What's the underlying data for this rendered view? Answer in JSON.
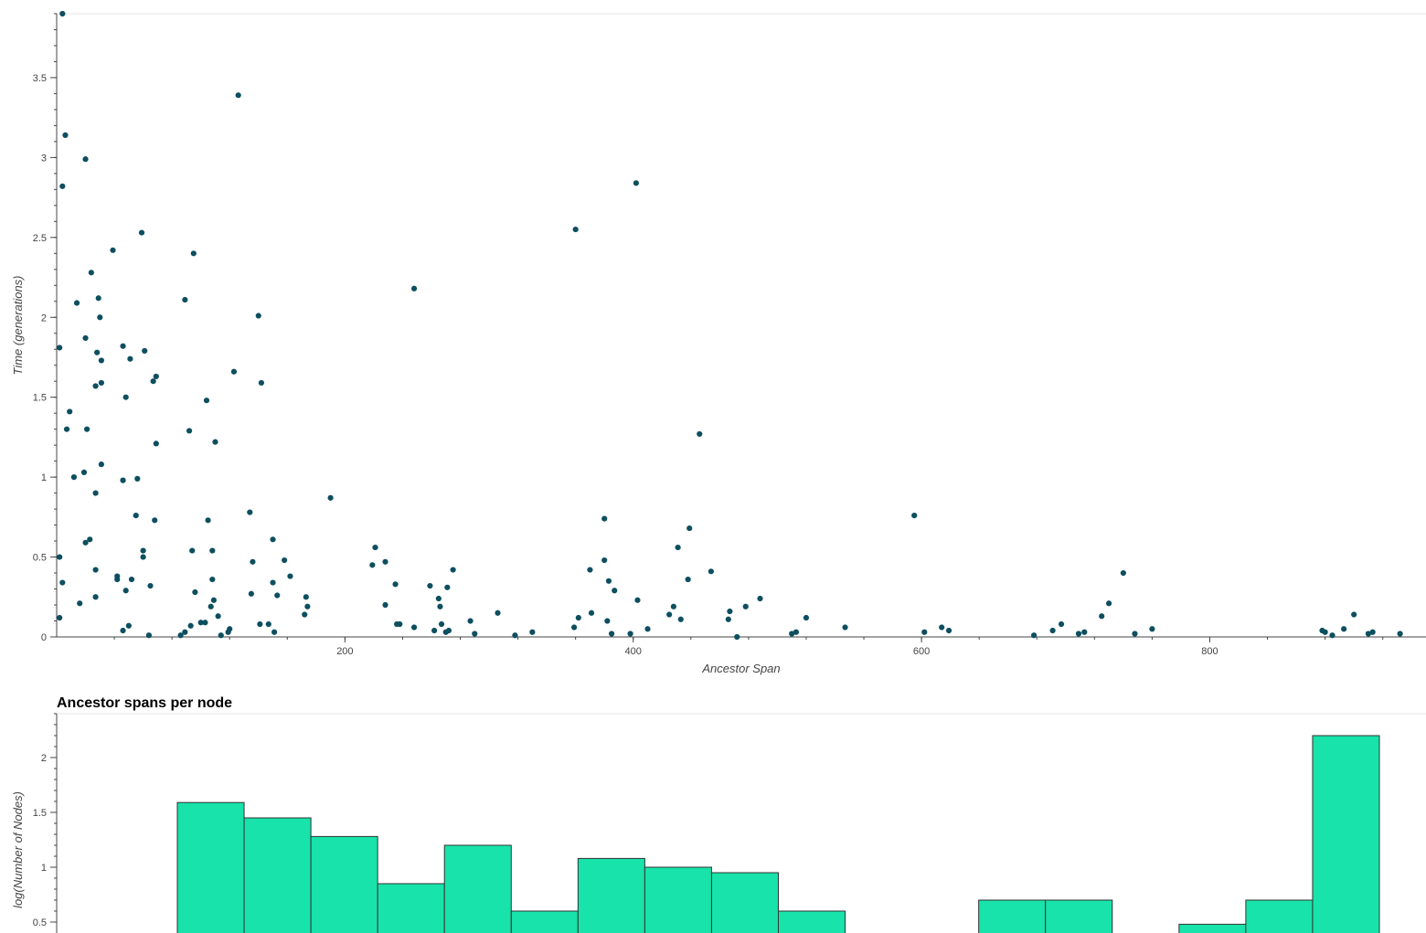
{
  "colors": {
    "point": "#0d4f5f",
    "bar_fill": "#17e3aa",
    "bar_stroke": "#333333",
    "axis": "#444444",
    "grid": "#e5e5e5"
  },
  "scatter": {
    "chart_data": {
      "type": "scatter",
      "title": "",
      "xlabel": "Ancestor Span",
      "ylabel": "Time (generations)",
      "xlim": [
        0,
        950
      ],
      "ylim": [
        0,
        3.9
      ],
      "x_ticks": [
        "200",
        "400",
        "600",
        "800"
      ],
      "y_ticks": [
        "0",
        "0.5",
        "1",
        "1.5",
        "2",
        "2.5",
        "3",
        "3.5"
      ],
      "grid": false,
      "points": [
        [
          4,
          3.9
        ],
        [
          4,
          2.82
        ],
        [
          6,
          3.14
        ],
        [
          20,
          2.99
        ],
        [
          2,
          1.81
        ],
        [
          14,
          2.09
        ],
        [
          24,
          2.28
        ],
        [
          29,
          2.12
        ],
        [
          30,
          2.0
        ],
        [
          28,
          1.78
        ],
        [
          31,
          1.73
        ],
        [
          31,
          1.59
        ],
        [
          27,
          1.57
        ],
        [
          20,
          1.87
        ],
        [
          9,
          1.41
        ],
        [
          7,
          1.3
        ],
        [
          21,
          1.3
        ],
        [
          12,
          1.0
        ],
        [
          19,
          1.03
        ],
        [
          27,
          0.9
        ],
        [
          31,
          1.08
        ],
        [
          2,
          0.5
        ],
        [
          4,
          0.34
        ],
        [
          2,
          0.12
        ],
        [
          16,
          0.21
        ],
        [
          20,
          0.59
        ],
        [
          23,
          0.61
        ],
        [
          27,
          0.42
        ],
        [
          27,
          0.25
        ],
        [
          39,
          2.42
        ],
        [
          46,
          1.82
        ],
        [
          48,
          1.5
        ],
        [
          51,
          1.74
        ],
        [
          59,
          2.53
        ],
        [
          61,
          1.79
        ],
        [
          67,
          1.6
        ],
        [
          69,
          1.63
        ],
        [
          69,
          1.21
        ],
        [
          46,
          0.98
        ],
        [
          56,
          0.99
        ],
        [
          55,
          0.76
        ],
        [
          68,
          0.73
        ],
        [
          60,
          0.54
        ],
        [
          60,
          0.5
        ],
        [
          65,
          0.32
        ],
        [
          42,
          0.36
        ],
        [
          48,
          0.29
        ],
        [
          52,
          0.36
        ],
        [
          42,
          0.38
        ],
        [
          50,
          0.07
        ],
        [
          46,
          0.04
        ],
        [
          64,
          0.01
        ],
        [
          89,
          2.11
        ],
        [
          95,
          2.4
        ],
        [
          92,
          1.29
        ],
        [
          104,
          1.48
        ],
        [
          110,
          1.22
        ],
        [
          105,
          0.73
        ],
        [
          94,
          0.54
        ],
        [
          108,
          0.54
        ],
        [
          96,
          0.28
        ],
        [
          108,
          0.36
        ],
        [
          107,
          0.19
        ],
        [
          109,
          0.23
        ],
        [
          112,
          0.13
        ],
        [
          100,
          0.09
        ],
        [
          103,
          0.09
        ],
        [
          93,
          0.07
        ],
        [
          89,
          0.03
        ],
        [
          86,
          0.01
        ],
        [
          114,
          0.01
        ],
        [
          120,
          0.05
        ],
        [
          119,
          0.03
        ],
        [
          126,
          3.39
        ],
        [
          123,
          1.66
        ],
        [
          140,
          2.01
        ],
        [
          142,
          1.59
        ],
        [
          134,
          0.78
        ],
        [
          136,
          0.47
        ],
        [
          135,
          0.27
        ],
        [
          141,
          0.08
        ],
        [
          147,
          0.08
        ],
        [
          150,
          0.61
        ],
        [
          158,
          0.48
        ],
        [
          162,
          0.38
        ],
        [
          150,
          0.34
        ],
        [
          153,
          0.26
        ],
        [
          173,
          0.25
        ],
        [
          174,
          0.19
        ],
        [
          172,
          0.14
        ],
        [
          151,
          0.03
        ],
        [
          190,
          0.87
        ],
        [
          248,
          2.18
        ],
        [
          221,
          0.56
        ],
        [
          219,
          0.45
        ],
        [
          228,
          0.47
        ],
        [
          235,
          0.33
        ],
        [
          259,
          0.32
        ],
        [
          265,
          0.24
        ],
        [
          266,
          0.19
        ],
        [
          271,
          0.31
        ],
        [
          275,
          0.42
        ],
        [
          228,
          0.2
        ],
        [
          238,
          0.08
        ],
        [
          236,
          0.08
        ],
        [
          248,
          0.06
        ],
        [
          262,
          0.04
        ],
        [
          267,
          0.08
        ],
        [
          270,
          0.03
        ],
        [
          272,
          0.04
        ],
        [
          287,
          0.1
        ],
        [
          290,
          0.02
        ],
        [
          306,
          0.15
        ],
        [
          318,
          0.01
        ],
        [
          330,
          0.03
        ],
        [
          360,
          2.55
        ],
        [
          402,
          2.84
        ],
        [
          380,
          0.74
        ],
        [
          370,
          0.42
        ],
        [
          380,
          0.48
        ],
        [
          383,
          0.35
        ],
        [
          387,
          0.29
        ],
        [
          371,
          0.15
        ],
        [
          362,
          0.12
        ],
        [
          359,
          0.06
        ],
        [
          382,
          0.1
        ],
        [
          385,
          0.02
        ],
        [
          403,
          0.23
        ],
        [
          410,
          0.05
        ],
        [
          398,
          0.02
        ],
        [
          446,
          1.27
        ],
        [
          439,
          0.68
        ],
        [
          431,
          0.56
        ],
        [
          438,
          0.36
        ],
        [
          454,
          0.41
        ],
        [
          428,
          0.19
        ],
        [
          433,
          0.11
        ],
        [
          425,
          0.14
        ],
        [
          467,
          0.16
        ],
        [
          466,
          0.11
        ],
        [
          478,
          0.19
        ],
        [
          488,
          0.24
        ],
        [
          472,
          0.0
        ],
        [
          510,
          0.02
        ],
        [
          513,
          0.03
        ],
        [
          520,
          0.12
        ],
        [
          547,
          0.06
        ],
        [
          595,
          0.76
        ],
        [
          602,
          0.03
        ],
        [
          614,
          0.06
        ],
        [
          619,
          0.04
        ],
        [
          678,
          0.01
        ],
        [
          691,
          0.04
        ],
        [
          697,
          0.08
        ],
        [
          709,
          0.02
        ],
        [
          713,
          0.03
        ],
        [
          725,
          0.13
        ],
        [
          730,
          0.21
        ],
        [
          740,
          0.4
        ],
        [
          748,
          0.02
        ],
        [
          760,
          0.05
        ],
        [
          878,
          0.04
        ],
        [
          880,
          0.03
        ],
        [
          885,
          0.01
        ],
        [
          893,
          0.05
        ],
        [
          900,
          0.14
        ],
        [
          910,
          0.02
        ],
        [
          913,
          0.03
        ],
        [
          932,
          0.02
        ]
      ]
    }
  },
  "histogram": {
    "chart_data": {
      "type": "bar",
      "title": "Ancestor spans per node",
      "xlabel": "",
      "ylabel": "log(Number of Nodes)",
      "ylim": [
        0.4,
        2.4
      ],
      "y_ticks": [
        "0.5",
        "1",
        "1.5",
        "2"
      ],
      "grid": false,
      "bin_width": 47,
      "bins": [
        {
          "start": 85,
          "value": 1.59
        },
        {
          "start": 132,
          "value": 1.45
        },
        {
          "start": 179,
          "value": 1.28
        },
        {
          "start": 226,
          "value": 0.85
        },
        {
          "start": 273,
          "value": 1.2
        },
        {
          "start": 320,
          "value": 0.6
        },
        {
          "start": 367,
          "value": 1.08
        },
        {
          "start": 414,
          "value": 1.0
        },
        {
          "start": 461,
          "value": 0.95
        },
        {
          "start": 508,
          "value": 0.6
        },
        {
          "start": 649,
          "value": 0.7
        },
        {
          "start": 696,
          "value": 0.7
        },
        {
          "start": 790,
          "value": 0.48
        },
        {
          "start": 837,
          "value": 0.7
        },
        {
          "start": 884,
          "value": 2.2
        }
      ]
    }
  }
}
